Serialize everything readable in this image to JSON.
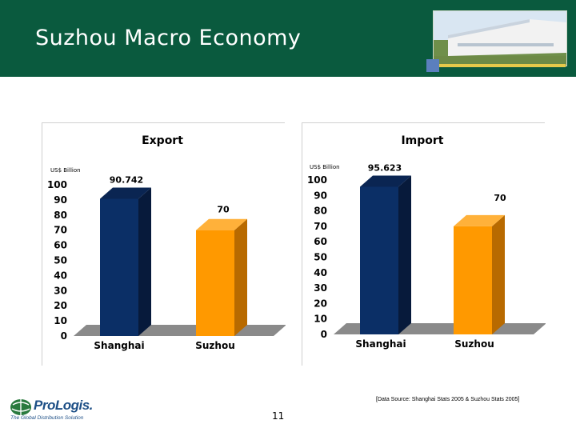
{
  "slide": {
    "title": "Suzhou Macro Economy",
    "page_number": "11",
    "source_note": "[Data Source: Shanghai Stats 2005 & Suzhou Stats 2005]",
    "logo": {
      "name": "ProLogis.",
      "tagline": "The Global Distribution Solution"
    },
    "header_color": "#0a5a3e"
  },
  "colors": {
    "shanghai": "#0b2f66",
    "suzhou": "#ff9900",
    "floor": "#8a8a8a"
  },
  "chart_data": [
    {
      "type": "bar",
      "title": "Export",
      "unit_label": "US$ Billion",
      "categories": [
        "Shanghai",
        "Suzhou"
      ],
      "values": [
        90.742,
        70
      ],
      "value_labels": [
        "90.742",
        "70"
      ],
      "ylim": [
        0,
        100
      ],
      "yticks": [
        0,
        10,
        20,
        30,
        40,
        50,
        60,
        70,
        80,
        90,
        100
      ],
      "grid": false,
      "legend": "none"
    },
    {
      "type": "bar",
      "title": "Import",
      "unit_label": "US$ Billion",
      "categories": [
        "Shanghai",
        "Suzhou"
      ],
      "values": [
        95.623,
        70
      ],
      "value_labels": [
        "95.623",
        "70"
      ],
      "ylim": [
        0,
        100
      ],
      "yticks": [
        0,
        10,
        20,
        30,
        40,
        50,
        60,
        70,
        80,
        90,
        100
      ],
      "grid": false,
      "legend": "none"
    }
  ]
}
